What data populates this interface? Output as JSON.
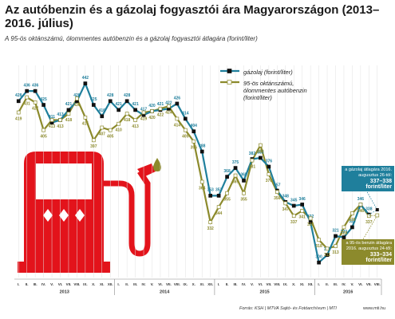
{
  "chart_data": {
    "type": "line",
    "title": "Az autóbenzin és a gázolaj fogyasztói ára Magyarországon (2013–2016. július)",
    "subtitle": "A 95-ös oktánszámú, ólommentes autóbenzin és a gázolaj fogyasztói átlagára (forint/liter)",
    "categories": [
      "I.",
      "II.",
      "III.",
      "IV.",
      "V.",
      "VI.",
      "VII.",
      "VIII.",
      "IX.",
      "X.",
      "XI.",
      "XII.",
      "I.",
      "II.",
      "III.",
      "IV.",
      "V.",
      "VI.",
      "VII.",
      "VIII.",
      "IX.",
      "X.",
      "XI.",
      "XII.",
      "I.",
      "II.",
      "III.",
      "IV.",
      "V.",
      "VI.",
      "VII.",
      "VIII.",
      "IX.",
      "X.",
      "XI.",
      "XII.",
      "I.",
      "II.",
      "III.",
      "IV.",
      "V.",
      "VI.",
      "VII.",
      "VIII."
    ],
    "x_groups": [
      {
        "label": "2013",
        "count": 12
      },
      {
        "label": "2014",
        "count": 12
      },
      {
        "label": "2015",
        "count": 12
      },
      {
        "label": "2016",
        "count": 8
      }
    ],
    "series": [
      {
        "name": "gázolaj (forint/liter)",
        "color": "#1f7f9c",
        "marker": "#111111",
        "values": [
          428,
          436,
          436,
          425,
          411,
          413,
          421,
          428,
          442,
          425,
          416,
          428,
          421,
          428,
          421,
          417,
          420,
          421,
          422,
          426,
          414,
          404,
          388,
          353,
          353,
          368,
          375,
          365,
          382,
          383,
          376,
          357,
          348,
          345,
          346,
          332,
          300,
          306,
          321,
          320,
          328,
          346,
          338,
          null
        ]
      },
      {
        "name": "95-ös oktánszámú, ólommentes autóbenzin (forint/liter)",
        "color": "#8c8a2c",
        "marker": "#ffffff",
        "values": [
          419,
          431,
          427,
          405,
          413,
          413,
          418,
          430,
          415,
          397,
          407,
          405,
          410,
          418,
          413,
          419,
          420,
          422,
          424,
          414,
          405,
          396,
          364,
          332,
          344,
          355,
          369,
          355,
          381,
          393,
          370,
          356,
          347,
          337,
          341,
          335,
          318,
          311,
          313,
          328,
          339,
          346,
          337,
          null
        ]
      }
    ],
    "annotations": [
      {
        "text": "a gázolaj átlagára 2016. augusztus 26-tól:",
        "value": "337–338 forint/liter"
      },
      {
        "text": "a 95-ös benzin átlagára 2016. augusztus 24-től:",
        "value": "333–334 forint/liter"
      }
    ],
    "source": "Forrás: KSH | MTVA Sajtó- és Fotóarchívum | MTI",
    "website": "www.mti.hu",
    "ylim": [
      290,
      450
    ]
  }
}
